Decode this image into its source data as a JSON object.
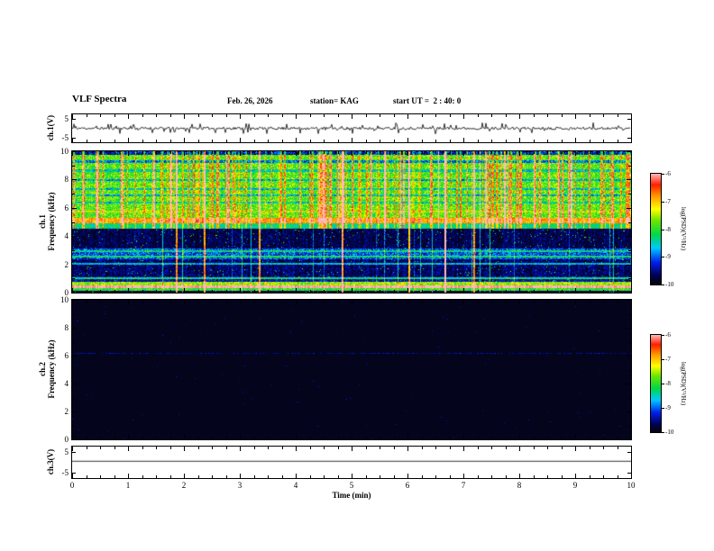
{
  "header": {
    "title": "VLF Spectra",
    "date": "Feb. 26, 2026",
    "station": "station= KAG",
    "start_ut": "start UT =  2 : 40: 0"
  },
  "xaxis": {
    "label": "Time (min)",
    "ticks": [
      "0",
      "1",
      "2",
      "3",
      "4",
      "5",
      "6",
      "7",
      "8",
      "9",
      "10"
    ],
    "xlim": [
      0,
      10
    ]
  },
  "panels": {
    "ch1v": {
      "label": "ch.1(V)",
      "yticks": [
        "5",
        "-5"
      ]
    },
    "spec1": {
      "line1": "ch.1",
      "line2": "Frequency (kHz)",
      "yticks": [
        "10",
        "8",
        "6",
        "4",
        "2",
        "0"
      ]
    },
    "spec2": {
      "line1": "ch.2",
      "line2": "Frequency (kHz)",
      "yticks": [
        "10",
        "8",
        "6",
        "4",
        "2",
        "0"
      ]
    },
    "ch3v": {
      "label": "ch.3(V)",
      "yticks": [
        "5",
        "-5"
      ]
    }
  },
  "colorbar": {
    "label": "log(PSD)(V²/Hz)",
    "ticks": [
      "-6",
      "-7",
      "-8",
      "-9",
      "-10"
    ],
    "clim": [
      -10,
      -6
    ]
  },
  "chart_data": [
    {
      "type": "line",
      "name": "ch1_waveform",
      "ylabel": "ch.1(V)",
      "ylim": [
        -7.5,
        7.5
      ],
      "yticks": [
        5,
        -5
      ],
      "seed": 11,
      "noise_amp_v": 0.7,
      "spike_count": 70,
      "spike_amp_v": 3.0,
      "description": "Noisy voltage trace fluctuating around 0 V with many small impulsive spikes over 0-10 min"
    },
    {
      "type": "heatmap",
      "name": "ch1_spectrogram",
      "ylabel": "ch.1 Frequency (kHz)",
      "ylim": [
        0,
        10
      ],
      "xlim": [
        0,
        10
      ],
      "clim": [
        -10,
        -6
      ],
      "seed": 7,
      "speckle": 0.02,
      "bands": [
        {
          "f0": 9.75,
          "f1": 10.0,
          "v": 0.15,
          "n": 0.15
        },
        {
          "f0": 5.3,
          "f1": 9.75,
          "v": 0.55,
          "n": 0.13
        },
        {
          "f0": 4.9,
          "f1": 5.3,
          "v": 0.78,
          "n": 0.08
        },
        {
          "f0": 4.5,
          "f1": 4.9,
          "v": 0.42,
          "n": 0.1
        },
        {
          "f0": 3.1,
          "f1": 4.5,
          "v": 0.07,
          "n": 0.08
        },
        {
          "f0": 2.35,
          "f1": 3.1,
          "v": 0.24,
          "n": 0.14
        },
        {
          "f0": 1.15,
          "f1": 2.35,
          "v": 0.09,
          "n": 0.09
        },
        {
          "f0": 0.75,
          "f1": 1.15,
          "v": 0.14,
          "n": 0.12
        },
        {
          "f0": 0.5,
          "f1": 0.75,
          "v": 0.6,
          "n": 0.15
        },
        {
          "f0": 0.3,
          "f1": 0.5,
          "v": 0.99,
          "n": 0.01
        },
        {
          "f0": 0.08,
          "f1": 0.3,
          "v": 0.5,
          "n": 0.12
        },
        {
          "f0": 0.0,
          "f1": 0.08,
          "v": 0.05,
          "n": 0.03
        }
      ],
      "hlines": [
        {
          "f": 9.3,
          "dv": -0.28
        },
        {
          "f": 8.65,
          "dv": -0.18
        },
        {
          "f": 8.0,
          "dv": -0.22
        },
        {
          "f": 7.35,
          "dv": -0.2
        },
        {
          "f": 6.9,
          "dv": -0.22
        },
        {
          "f": 6.4,
          "dv": -0.18
        },
        {
          "f": 5.75,
          "dv": 0.12
        },
        {
          "f": 2.9,
          "dv": 0.18
        },
        {
          "f": 2.55,
          "dv": 0.2
        },
        {
          "f": 2.0,
          "dv": 0.25
        },
        {
          "f": 1.0,
          "dv": 0.3
        }
      ],
      "streaks": {
        "count": 150,
        "fmin": 4.55,
        "dv": 0.28
      },
      "full_streaks": {
        "count": 22,
        "dv": 0.2
      },
      "strong_streaks": {
        "count": 8,
        "dv": 0.7
      },
      "description": "Broadband VLF noise (green/yellow) above ~5 kHz with dense red impulsive vertical streaks; bright band at ~5 kHz; mostly dark below with blue banded emission near 2.4-3.1 kHz, lines near 1 and 2 kHz, bright bands near 0.1-0.75 kHz"
    },
    {
      "type": "heatmap",
      "name": "ch2_spectrogram",
      "ylabel": "ch.2 Frequency (kHz)",
      "ylim": [
        0,
        10
      ],
      "xlim": [
        0,
        10
      ],
      "clim": [
        -10,
        -6
      ],
      "seed": 23,
      "background_v": 0.02,
      "line_f_khz": 6.2,
      "line_v": 0.14,
      "speckle": 0.0015,
      "description": "Nearly black spectrogram; only a faint dark-blue emission line near 6.2 kHz and sparse speckles"
    },
    {
      "type": "line",
      "name": "ch3_waveform",
      "ylabel": "ch.3(V)",
      "ylim": [
        -7.5,
        7.5
      ],
      "yticks": [
        5,
        -5
      ],
      "value_v": 0.5,
      "description": "Flat DC line slightly above 0 V across the whole record"
    }
  ]
}
